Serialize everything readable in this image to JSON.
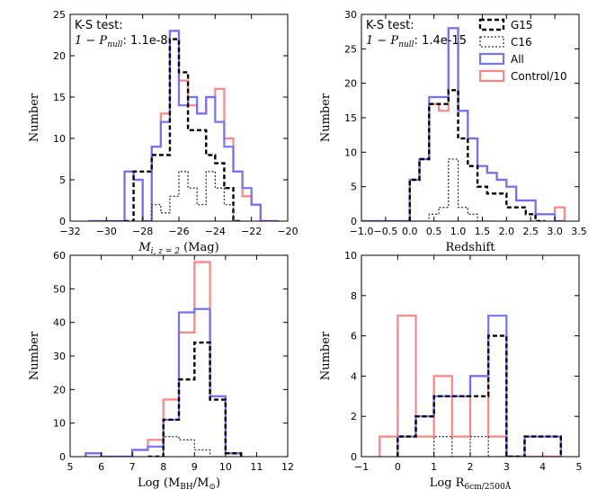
{
  "colors": {
    "all": "#6b6bff",
    "control": "#ff7070",
    "overlap": "#8b1c8b",
    "g15": "#000000",
    "c16": "#333333"
  },
  "chart_data": [
    {
      "type": "histogram",
      "xlabel": "M_i, z=2 (Mag)",
      "xlabel_main": "M",
      "xlabel_sub": "i, z = 2",
      "xlabel_unit": "(Mag)",
      "ylabel": "Number",
      "xlim": [
        -32,
        -20
      ],
      "ylim": [
        0,
        25
      ],
      "xticks": [
        "−32",
        "−30",
        "−28",
        "−26",
        "−24",
        "−22",
        "−20"
      ],
      "yticks": [
        "0",
        "5",
        "10",
        "15",
        "20",
        "25"
      ],
      "annotation_title": "K-S test:",
      "annotation_stat": "1 − P",
      "annotation_stat_sub": "null",
      "annotation_value": ": 1.1e-8",
      "bin_width": 0.5,
      "series": [
        {
          "name": "All",
          "edges_start": -31.0,
          "values": [
            0,
            0,
            0,
            0,
            6,
            5,
            0,
            9,
            12,
            23,
            14,
            15,
            13,
            15,
            12,
            9,
            6,
            4,
            2,
            0,
            0
          ]
        },
        {
          "name": "Control/10",
          "edges_start": -31.0,
          "values": [
            0,
            0,
            0,
            0,
            6,
            5,
            0,
            9,
            13,
            23,
            17,
            14,
            13,
            15,
            16,
            10,
            6,
            3,
            2,
            0,
            0
          ]
        },
        {
          "name": "G15",
          "edges_start": -29.0,
          "values": [
            0,
            6,
            6,
            8,
            8,
            22,
            18,
            11,
            11,
            8,
            7,
            4,
            0
          ]
        },
        {
          "name": "C16",
          "edges_start": -28.0,
          "values": [
            0,
            2,
            1,
            3,
            6,
            4,
            2,
            6,
            4,
            2,
            0
          ]
        }
      ]
    },
    {
      "type": "histogram",
      "xlabel": "Redshift",
      "ylabel": "Number",
      "xlim": [
        -1.0,
        3.5
      ],
      "ylim": [
        0,
        30
      ],
      "xticks": [
        "−1.0",
        "−0.5",
        "0.0",
        "0.5",
        "1.0",
        "1.5",
        "2.0",
        "2.5",
        "3.0",
        "3.5"
      ],
      "yticks": [
        "0",
        "5",
        "10",
        "15",
        "20",
        "25",
        "30"
      ],
      "annotation_title": "K-S test:",
      "annotation_stat": "1 − P",
      "annotation_stat_sub": "null",
      "annotation_value": ": 1.4e-15",
      "legend": [
        "G15",
        "C16",
        "All",
        "Control/10"
      ],
      "bin_width": 0.2,
      "series": [
        {
          "name": "All",
          "edges_start": -1.0,
          "values": [
            0,
            0,
            0,
            0,
            0,
            6,
            9,
            18,
            18,
            28,
            16,
            12,
            8,
            7,
            6,
            5,
            3,
            3,
            1,
            1,
            0
          ]
        },
        {
          "name": "Control/10",
          "edges_start": -1.0,
          "values": [
            0,
            0,
            0,
            0,
            0,
            6,
            9,
            17,
            16,
            28,
            16,
            12,
            8,
            7,
            6,
            5,
            3,
            3,
            1,
            1,
            2
          ]
        },
        {
          "name": "G15",
          "edges_start": 0.0,
          "values": [
            6,
            9,
            17,
            17,
            19,
            12,
            8,
            5,
            4,
            4,
            2,
            2,
            1,
            0
          ]
        },
        {
          "name": "C16",
          "edges_start": 0.0,
          "values": [
            0,
            0,
            1,
            2,
            9,
            2,
            1,
            0,
            0
          ]
        }
      ]
    },
    {
      "type": "histogram",
      "xlabel": "Log (M_BH/M_sun)",
      "xlabel_pre": "Log (M",
      "xlabel_sub1": "BH",
      "xlabel_mid": "/M",
      "xlabel_sub2": "⊙",
      "xlabel_post": ")",
      "ylabel": "Number",
      "xlim": [
        5,
        12
      ],
      "ylim": [
        0,
        60
      ],
      "xticks": [
        "5",
        "6",
        "7",
        "8",
        "9",
        "10",
        "11",
        "12"
      ],
      "yticks": [
        "0",
        "10",
        "20",
        "30",
        "40",
        "50",
        "60"
      ],
      "bin_width": 0.5,
      "series": [
        {
          "name": "All",
          "edges_start": 5.5,
          "values": [
            1,
            0,
            0,
            2,
            3,
            11,
            43,
            44,
            18,
            1
          ]
        },
        {
          "name": "Control/10",
          "edges_start": 5.5,
          "values": [
            1,
            0,
            0,
            2,
            5,
            17,
            37,
            58,
            18,
            1
          ]
        },
        {
          "name": "G15",
          "edges_start": 7.5,
          "values": [
            0,
            11,
            23,
            34,
            17,
            1
          ]
        },
        {
          "name": "C16",
          "edges_start": 8.0,
          "values": [
            6,
            5,
            2,
            0
          ]
        }
      ]
    },
    {
      "type": "histogram",
      "xlabel": "Log R_6cm/2500Å",
      "xlabel_pre": "Log R",
      "xlabel_sub": "6cm/2500Å",
      "ylabel": "Number",
      "xlim": [
        -1,
        5
      ],
      "ylim": [
        0,
        10
      ],
      "xticks": [
        "−1",
        "0",
        "1",
        "2",
        "3",
        "4",
        "5"
      ],
      "yticks": [
        "0",
        "2",
        "4",
        "6",
        "8",
        "10"
      ],
      "bin_width": 0.5,
      "series": [
        {
          "name": "All",
          "edges_start": 0.0,
          "values": [
            1,
            2,
            3,
            3,
            4,
            7,
            0,
            1,
            1
          ]
        },
        {
          "name": "Control/10",
          "edges_start": -0.5,
          "values": [
            1,
            7,
            1,
            4,
            1,
            4,
            1,
            0,
            0,
            0
          ]
        },
        {
          "name": "G15",
          "edges_start": 0.0,
          "values": [
            1,
            2,
            3,
            3,
            3,
            6,
            0,
            1,
            1
          ]
        },
        {
          "name": "C16",
          "edges_start": 0.0,
          "values": [
            0,
            0,
            1,
            0,
            1,
            0
          ]
        }
      ]
    }
  ]
}
